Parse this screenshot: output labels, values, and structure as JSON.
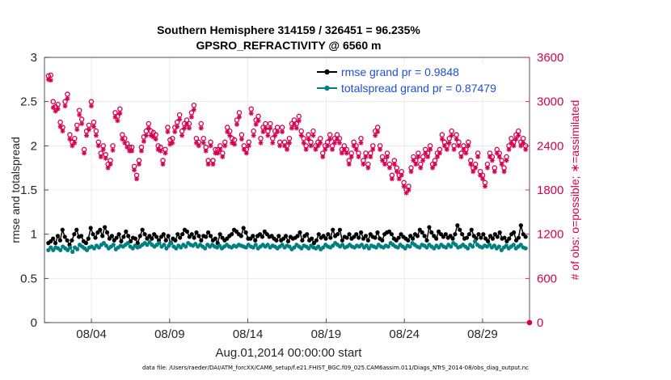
{
  "chart_data": {
    "type": "line",
    "title": [
      "Southern Hemisphere 314159 / 326451 = 96.235%",
      "GPSRO_REFRACTIVITY @ 6560 m"
    ],
    "xlabel": "Aug.01,2014 00:00:00 start",
    "ylabel": "rmse and totalspread",
    "y2label": "# of obs: o=possible; ∗=assimilated",
    "x_tick_labels": [
      "08/04",
      "08/09",
      "08/14",
      "08/19",
      "08/24",
      "08/29"
    ],
    "x_tick_days": [
      3,
      8,
      13,
      18,
      23,
      28
    ],
    "xlim_days": [
      0,
      31
    ],
    "ylim": [
      0,
      3
    ],
    "y_ticks": [
      "0",
      "0.5",
      "1",
      "1.5",
      "2",
      "2.5",
      "3"
    ],
    "y2lim": [
      0,
      3600
    ],
    "y2_ticks": [
      "0",
      "600",
      "1200",
      "1800",
      "2400",
      "3000",
      "3600"
    ],
    "grid": true,
    "legend_position": "top-right",
    "series": [
      {
        "name": "rmse grand pr = 0.9848",
        "color": "#000000",
        "axis": "left",
        "values": [
          0.9,
          0.92,
          0.95,
          0.9,
          0.98,
          0.93,
          1.05,
          0.97,
          0.93,
          0.88,
          0.93,
          1.0,
          1.05,
          0.97,
          0.98,
          0.92,
          0.9,
          0.95,
          1.07,
          1.0,
          0.96,
          1.02,
          1.05,
          0.98,
          1.08,
          1.02,
          0.95,
          0.98,
          0.93,
          0.96,
          1.0,
          0.92,
          0.97,
          1.03,
          0.98,
          0.92,
          0.96,
          0.95,
          0.9,
          0.98,
          1.05,
          1.0,
          0.95,
          0.98,
          0.95,
          1.0,
          0.97,
          0.93,
          0.97,
          1.0,
          0.93,
          0.98,
          0.9,
          0.95,
          0.93,
          1.0,
          0.96,
          1.0,
          1.05,
          1.03,
          0.97,
          1.0,
          0.96,
          1.02,
          0.98,
          0.93,
          0.98,
          0.97,
          1.02,
          0.98,
          0.93,
          0.95,
          0.9,
          1.0,
          0.96,
          0.93,
          0.95,
          0.98,
          1.0,
          1.05,
          1.03,
          1.0,
          0.98,
          1.07,
          1.02,
          0.95,
          0.95,
          0.98,
          0.93,
          0.98,
          1.0,
          0.97,
          1.03,
          1.0,
          0.97,
          0.98,
          0.95,
          0.93,
          0.98,
          0.93,
          0.95,
          0.98,
          0.92,
          0.97,
          0.95,
          0.96,
          0.98,
          1.02,
          0.93,
          0.98,
          1.0,
          0.93,
          0.95,
          0.9,
          0.93,
          1.0,
          0.96,
          0.98,
          0.95,
          1.0,
          0.96,
          1.05,
          0.98,
          1.0,
          1.05,
          0.93,
          0.97,
          0.96,
          1.0,
          0.95,
          0.97,
          1.0,
          0.96,
          1.02,
          0.95,
          0.98,
          0.93,
          1.0,
          0.97,
          0.96,
          1.02,
          0.95,
          0.93,
          1.0,
          1.02,
          1.03,
          1.0,
          0.95,
          0.93,
          0.96,
          1.0,
          0.97,
          0.95,
          0.93,
          0.98,
          0.95,
          1.0,
          0.98,
          1.05,
          1.02,
          0.98,
          0.93,
          1.08,
          1.02,
          0.98,
          0.95,
          1.03,
          1.0,
          0.97,
          1.0,
          0.96,
          0.98,
          0.95,
          1.0,
          1.1,
          1.05,
          1.0,
          0.95,
          0.96,
          1.0,
          1.05,
          0.98,
          0.95,
          1.0,
          0.96,
          1.0,
          0.95,
          0.92,
          0.98,
          0.95,
          1.0,
          0.97,
          1.02,
          0.95,
          0.96,
          0.92,
          0.95,
          1.0,
          1.02,
          0.93,
          0.96,
          1.1,
          1.0,
          0.97
        ]
      },
      {
        "name": "totalspread grand pr = 0.87479",
        "color": "#008080",
        "axis": "left",
        "values": [
          0.82,
          0.85,
          0.82,
          0.85,
          0.84,
          0.82,
          0.86,
          0.84,
          0.82,
          0.85,
          0.8,
          0.85,
          0.83,
          0.88,
          0.86,
          0.84,
          0.82,
          0.85,
          0.86,
          0.84,
          0.87,
          0.85,
          0.88,
          0.9,
          0.87,
          0.84,
          0.86,
          0.88,
          0.83,
          0.85,
          0.87,
          0.86,
          0.88,
          0.9,
          0.86,
          0.84,
          0.87,
          0.85,
          0.86,
          0.88,
          0.9,
          0.88,
          0.91,
          0.88,
          0.86,
          0.88,
          0.9,
          0.86,
          0.88,
          0.84,
          0.87,
          0.9,
          0.86,
          0.84,
          0.87,
          0.85,
          0.88,
          0.86,
          0.9,
          0.88,
          0.87,
          0.89,
          0.86,
          0.88,
          0.86,
          0.84,
          0.88,
          0.86,
          0.88,
          0.86,
          0.85,
          0.87,
          0.84,
          0.86,
          0.88,
          0.86,
          0.85,
          0.87,
          0.86,
          0.88,
          0.87,
          0.86,
          0.85,
          0.88,
          0.86,
          0.85,
          0.88,
          0.84,
          0.86,
          0.88,
          0.86,
          0.88,
          0.85,
          0.87,
          0.86,
          0.84,
          0.86,
          0.88,
          0.85,
          0.87,
          0.86,
          0.83,
          0.85,
          0.88,
          0.86,
          0.84,
          0.87,
          0.86,
          0.84,
          0.87,
          0.85,
          0.84,
          0.86,
          0.83,
          0.85,
          0.88,
          0.86,
          0.85,
          0.87,
          0.9,
          0.88,
          0.86,
          0.88,
          0.85,
          0.86,
          0.88,
          0.86,
          0.85,
          0.87,
          0.86,
          0.88,
          0.85,
          0.87,
          0.84,
          0.87,
          0.86,
          0.85,
          0.88,
          0.86,
          0.85,
          0.87,
          0.86,
          0.9,
          0.88,
          0.86,
          0.85,
          0.88,
          0.86,
          0.84,
          0.87,
          0.86,
          0.9,
          0.88,
          0.86,
          0.85,
          0.88,
          0.87,
          0.85,
          0.88,
          0.86,
          0.84,
          0.87,
          0.85,
          0.88,
          0.86,
          0.85,
          0.88,
          0.86,
          0.9,
          0.88,
          0.85,
          0.86,
          0.88,
          0.86,
          0.84,
          0.88,
          0.86,
          0.92,
          0.88,
          0.86,
          0.85,
          0.87,
          0.86,
          0.88,
          0.85,
          0.87,
          0.84,
          0.86,
          0.82,
          0.85,
          0.87,
          0.84,
          0.86,
          0.88,
          0.84,
          0.86,
          0.88,
          0.85,
          0.84
        ]
      },
      {
        "name": "possible",
        "color": "#d6004f",
        "axis": "right",
        "marker": "o",
        "values": [
          3350,
          3360,
          3000,
          2930,
          2960,
          2720,
          2650,
          3000,
          3100,
          2550,
          2450,
          2500,
          2680,
          2880,
          2760,
          2350,
          2600,
          2680,
          3000,
          2720,
          2600,
          2450,
          2300,
          2400,
          2280,
          2150,
          2200,
          2400,
          2850,
          2800,
          2900,
          2550,
          2500,
          2430,
          2380,
          2380,
          2120,
          2000,
          2200,
          2380,
          2520,
          2600,
          2700,
          2600,
          2580,
          2550,
          2400,
          2380,
          2200,
          2350,
          2650,
          2480,
          2500,
          2650,
          2720,
          2820,
          2600,
          2700,
          2750,
          2700,
          2850,
          2950,
          2500,
          2450,
          2700,
          2500,
          2380,
          2200,
          2450,
          2200,
          2350,
          2350,
          2400,
          2300,
          2450,
          2650,
          2600,
          2500,
          2480,
          2750,
          2850,
          2550,
          2400,
          2350,
          2450,
          2900,
          2600,
          2750,
          2800,
          2500,
          2650,
          2700,
          2600,
          2700,
          2500,
          2600,
          2650,
          2450,
          2650,
          2450,
          2400,
          2500,
          2700,
          2750,
          2700,
          2800,
          2600,
          2500,
          2400,
          2550,
          2450,
          2600,
          2400,
          2450,
          2500,
          2300,
          2400,
          2450,
          2550,
          2400,
          2500,
          2550,
          2500,
          2350,
          2400,
          2350,
          2200,
          2300,
          2450,
          2400,
          2300,
          2500,
          2200,
          2300,
          2150,
          2300,
          2400,
          2600,
          2650,
          2400,
          2250,
          2200,
          2300,
          2150,
          2000,
          2200,
          2100,
          2000,
          2050,
          1900,
          1800,
          1850,
          2100,
          2250,
          2200,
          2300,
          2150,
          2250,
          2350,
          2300,
          2400,
          2150,
          2200,
          2300,
          2350,
          2550,
          2450,
          2400,
          2500,
          2600,
          2400,
          2550,
          2450,
          2300,
          2400,
          2350,
          2450,
          2200,
          2100,
          2150,
          2300,
          2050,
          2000,
          1900,
          2150,
          2300,
          2250,
          2100,
          2350,
          2300,
          2200,
          2100,
          2250,
          2400,
          2500,
          2450,
          2550,
          2600,
          2450,
          2500,
          2400
        ]
      },
      {
        "name": "assimilated",
        "color": "#d6004f",
        "axis": "right",
        "marker": "*",
        "values": [
          3300,
          3290,
          2920,
          2870,
          2900,
          2660,
          2600,
          2940,
          3040,
          2490,
          2400,
          2440,
          2620,
          2820,
          2700,
          2300,
          2540,
          2620,
          2940,
          2660,
          2540,
          2400,
          2250,
          2350,
          2230,
          2100,
          2150,
          2340,
          2790,
          2740,
          2840,
          2490,
          2440,
          2380,
          2330,
          2330,
          2070,
          1950,
          2150,
          2330,
          2460,
          2540,
          2640,
          2540,
          2520,
          2490,
          2350,
          2330,
          2150,
          2300,
          2590,
          2420,
          2440,
          2590,
          2660,
          2760,
          2540,
          2640,
          2690,
          2640,
          2790,
          2890,
          2440,
          2400,
          2640,
          2440,
          2330,
          2150,
          2400,
          2150,
          2300,
          2300,
          2350,
          2250,
          2400,
          2590,
          2540,
          2440,
          2420,
          2690,
          2790,
          2490,
          2350,
          2300,
          2400,
          2840,
          2540,
          2690,
          2740,
          2440,
          2590,
          2640,
          2540,
          2640,
          2440,
          2540,
          2590,
          2400,
          2590,
          2400,
          2350,
          2440,
          2640,
          2690,
          2640,
          2740,
          2540,
          2440,
          2350,
          2490,
          2400,
          2540,
          2350,
          2400,
          2440,
          2250,
          2350,
          2400,
          2490,
          2350,
          2440,
          2490,
          2440,
          2300,
          2350,
          2300,
          2150,
          2250,
          2400,
          2350,
          2250,
          2440,
          2150,
          2250,
          2100,
          2250,
          2350,
          2540,
          2590,
          2350,
          2200,
          2150,
          2250,
          2100,
          1950,
          2150,
          2050,
          1950,
          2000,
          1850,
          1760,
          1800,
          2050,
          2200,
          2150,
          2250,
          2100,
          2200,
          2300,
          2250,
          2350,
          2100,
          2150,
          2250,
          2300,
          2490,
          2400,
          2350,
          2440,
          2540,
          2350,
          2490,
          2400,
          2250,
          2350,
          2300,
          2400,
          2150,
          2050,
          2100,
          2250,
          2000,
          1950,
          1850,
          2100,
          2250,
          2200,
          2050,
          2300,
          2250,
          2150,
          2050,
          2200,
          2350,
          2440,
          2400,
          2490,
          2540,
          2400,
          2440,
          2350
        ]
      }
    ],
    "footer": "data file: /Users/raeder/DAI/ATM_forcXX/CAM6_setup/f.e21.FHIST_BGC.f09_025.CAM6assim.011/Diags_NTrS_2014-08/obs_diag_output.nc"
  }
}
